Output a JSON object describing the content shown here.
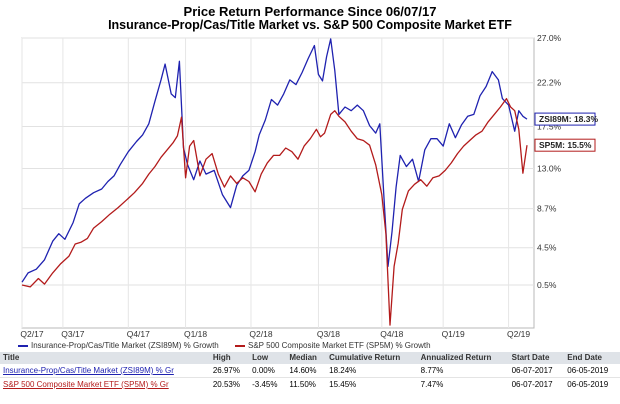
{
  "chart_data": {
    "type": "line",
    "title": "Price Return Performance Since 06/07/17",
    "subtitle": "Insurance-Prop/Cas/Title Market   vs.   S&P 500 Composite Market ETF",
    "xlabel": "",
    "ylabel": "",
    "y_ticks": [
      "27.0%",
      "22.2%",
      "17.5%",
      "13.0%",
      "8.7%",
      "4.5%",
      "0.5%"
    ],
    "y_tick_values": [
      27.0,
      22.2,
      17.5,
      13.0,
      8.7,
      4.5,
      0.5
    ],
    "x_ticks": [
      "Q2/17",
      "Q3/17",
      "Q4/17",
      "Q1/18",
      "Q2/18",
      "Q3/18",
      "Q4/18",
      "Q1/19",
      "Q2/19"
    ],
    "x_tick_values": [
      0,
      40,
      104,
      160,
      224,
      290,
      352,
      412,
      476
    ],
    "ylim": [
      -3.8,
      27.0
    ],
    "xlim": [
      0,
      495
    ],
    "grid": true,
    "series": [
      {
        "name": "Insurance-Prop/Cas/Title Market (ZSI89M) % Growth",
        "end_label": "ZSI89M: 18.3%",
        "color": "#1f22b0",
        "x": [
          0,
          6,
          14,
          22,
          30,
          36,
          42,
          50,
          56,
          62,
          70,
          78,
          84,
          90,
          96,
          104,
          112,
          118,
          124,
          130,
          136,
          140,
          146,
          150,
          154,
          158,
          162,
          168,
          174,
          180,
          188,
          196,
          204,
          210,
          216,
          222,
          228,
          232,
          238,
          244,
          250,
          256,
          262,
          268,
          274,
          280,
          286,
          290,
          294,
          298,
          302,
          306,
          310,
          316,
          322,
          328,
          334,
          340,
          346,
          350,
          354,
          358,
          362,
          366,
          370,
          376,
          382,
          388,
          394,
          400,
          406,
          412,
          418,
          424,
          430,
          436,
          442,
          448,
          454,
          460,
          466,
          470,
          476,
          482,
          486,
          490,
          494
        ],
        "y": [
          0.8,
          1.8,
          2.2,
          3.2,
          5.2,
          6.0,
          5.4,
          7.2,
          9.2,
          9.8,
          10.4,
          10.8,
          11.6,
          12.2,
          13.4,
          14.8,
          15.9,
          16.6,
          17.8,
          20.2,
          22.5,
          24.2,
          21.0,
          20.6,
          24.5,
          15.2,
          13.4,
          11.8,
          13.8,
          12.4,
          12.8,
          10.2,
          8.8,
          11.2,
          12.2,
          12.8,
          14.8,
          16.6,
          18.2,
          20.4,
          19.8,
          21.0,
          22.5,
          22.0,
          23.3,
          24.8,
          26.2,
          23.1,
          22.4,
          25.0,
          26.9,
          23.5,
          18.8,
          19.6,
          19.2,
          19.8,
          19.2,
          17.6,
          16.8,
          17.8,
          10.0,
          2.5,
          6.2,
          11.0,
          14.4,
          13.2,
          14.0,
          11.6,
          15.0,
          16.2,
          16.2,
          15.4,
          17.8,
          16.3,
          17.7,
          18.6,
          18.8,
          20.8,
          21.8,
          23.4,
          22.5,
          20.5,
          19.8,
          17.0,
          19.2,
          18.6,
          18.3
        ]
      },
      {
        "name": "S&P 500 Composite Market ETF (SP5M) % Growth",
        "end_label": "SP5M: 15.5%",
        "color": "#b31b1b",
        "x": [
          0,
          8,
          16,
          22,
          30,
          38,
          46,
          52,
          58,
          64,
          70,
          78,
          86,
          94,
          102,
          110,
          118,
          124,
          130,
          136,
          142,
          148,
          152,
          156,
          160,
          164,
          168,
          174,
          180,
          186,
          192,
          198,
          204,
          210,
          216,
          222,
          228,
          234,
          240,
          246,
          252,
          258,
          264,
          270,
          276,
          282,
          288,
          292,
          296,
          302,
          306,
          310,
          316,
          322,
          328,
          334,
          340,
          346,
          352,
          356,
          360,
          364,
          368,
          372,
          378,
          384,
          390,
          396,
          402,
          408,
          414,
          420,
          426,
          432,
          438,
          444,
          450,
          456,
          462,
          468,
          474,
          478,
          482,
          486,
          490,
          494
        ],
        "y": [
          0.5,
          0.3,
          1.2,
          0.6,
          1.8,
          2.8,
          3.6,
          4.9,
          5.1,
          5.5,
          6.6,
          7.3,
          8.1,
          8.8,
          9.6,
          10.4,
          11.4,
          12.4,
          13.2,
          14.2,
          15.0,
          15.8,
          16.5,
          18.5,
          12.0,
          15.4,
          16.0,
          12.2,
          14.0,
          14.6,
          12.4,
          11.0,
          12.2,
          11.4,
          12.0,
          11.6,
          10.5,
          12.4,
          13.6,
          14.4,
          14.4,
          15.2,
          14.8,
          14.0,
          15.4,
          16.2,
          17.2,
          16.4,
          16.8,
          18.8,
          19.2,
          18.6,
          18.0,
          17.0,
          16.2,
          16.0,
          15.5,
          13.4,
          10.2,
          6.0,
          -3.8,
          2.5,
          5.0,
          8.6,
          10.6,
          11.3,
          11.8,
          11.1,
          12.0,
          12.2,
          12.8,
          13.6,
          14.6,
          15.4,
          16.0,
          16.6,
          17.0,
          18.0,
          18.8,
          19.6,
          20.5,
          19.6,
          19.2,
          17.2,
          12.5,
          15.5
        ]
      }
    ],
    "legend_position": "bottom-left"
  },
  "legend": {
    "blue": "Insurance-Prop/Cas/Title Market (ZSI89M) % Growth",
    "red": "S&P 500 Composite Market ETF (SP5M) % Growth"
  },
  "table": {
    "headers": [
      "Title",
      "High",
      "Low",
      "Median",
      "Cumulative Return",
      "Annualized Return",
      "Start Date",
      "End Date"
    ],
    "rows": [
      [
        "Insurance-Prop/Cas/Title Market (ZSI89M) % Gr",
        "26.97%",
        "0.00%",
        "14.60%",
        "18.24%",
        "8.77%",
        "06-07-2017",
        "06-05-2019"
      ],
      [
        "S&P 500 Composite Market ETF (SP5M) % Gr",
        "20.53%",
        "-3.45%",
        "11.50%",
        "15.45%",
        "7.47%",
        "06-07-2017",
        "06-05-2019"
      ]
    ]
  },
  "colors": {
    "blue": "#1f22b0",
    "red": "#b31b1b",
    "header_bg": "#dfe3e8"
  }
}
